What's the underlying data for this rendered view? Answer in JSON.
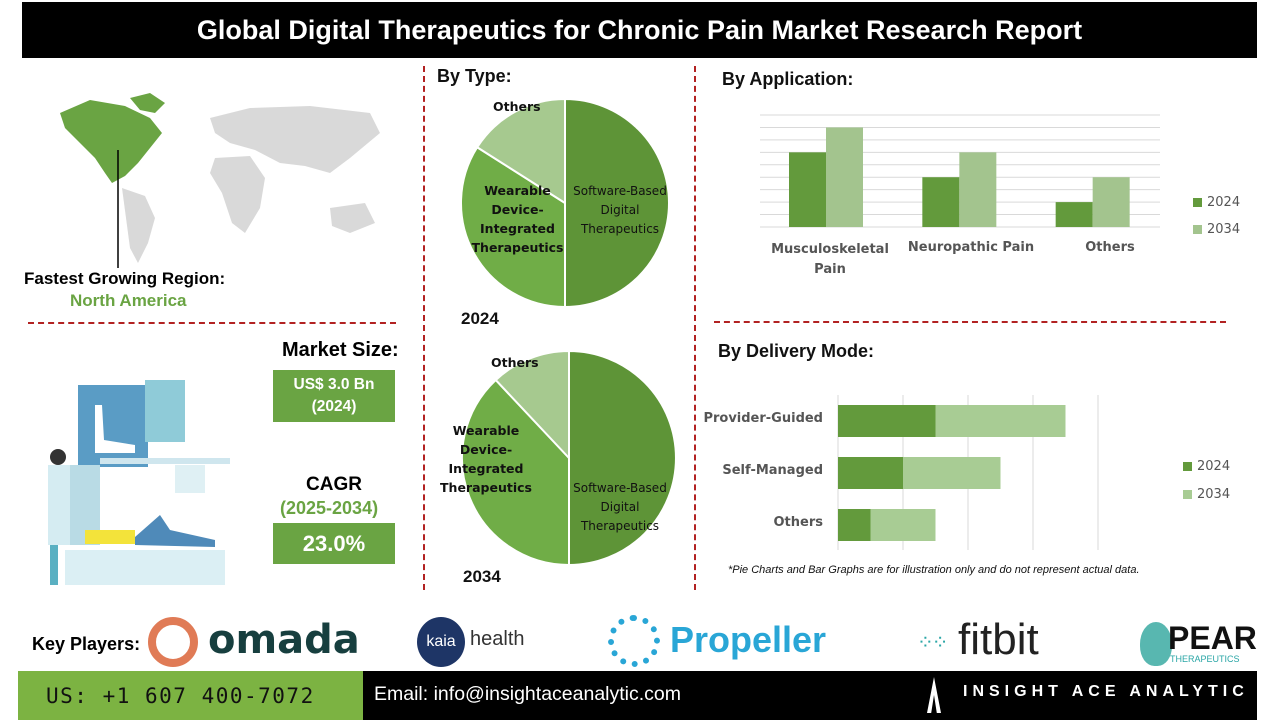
{
  "title": "Global Digital Therapeutics for Chronic Pain Market Research Report",
  "region": {
    "label": "Fastest Growing Region:",
    "value": "North America"
  },
  "market_size": {
    "label": "Market Size:",
    "value": "US$ 3.0 Bn",
    "year": "(2024)"
  },
  "cagr": {
    "label": "CAGR",
    "period": "(2025-2034)",
    "value": "23.0%"
  },
  "by_type": {
    "heading": "By Type:"
  },
  "by_application": {
    "heading": "By Application:"
  },
  "by_delivery": {
    "heading": "By Delivery Mode:"
  },
  "disclaimer": "*Pie Charts and Bar Graphs are for illustration only and do not represent actual data.",
  "key_players": {
    "label": "Key Players:",
    "logos": [
      "omada",
      "kaia",
      "health",
      "Propeller",
      "fitbit",
      "PEAR",
      "THERAPEUTICS"
    ]
  },
  "footer": {
    "phone": "US: +1 607 400-7072",
    "email": "Email: info@insightaceanalytic.com",
    "brand": "INSIGHT ACE ANALYTIC"
  },
  "colors": {
    "dark_green": "#5e9437",
    "mid_green": "#70ad47",
    "light_green": "#a6c98f",
    "divider": "#b22222"
  },
  "chart_data": [
    {
      "type": "pie",
      "title": "2024",
      "categories": [
        "Software-Based Digital Therapeutics",
        "Wearable Device-Integrated Therapeutics",
        "Others"
      ],
      "values": [
        50,
        34,
        16
      ],
      "colors": [
        "#5e9437",
        "#70ad47",
        "#a6c98f"
      ]
    },
    {
      "type": "pie",
      "title": "2034",
      "categories": [
        "Software-Based Digital Therapeutics",
        "Wearable Device-Integrated Therapeutics",
        "Others"
      ],
      "values": [
        50,
        38,
        12
      ],
      "colors": [
        "#5e9437",
        "#70ad47",
        "#a6c98f"
      ]
    },
    {
      "type": "bar",
      "categories": [
        "Musculoskeletal Pain",
        "Neuropathic Pain",
        "Others"
      ],
      "series": [
        {
          "name": "2024",
          "values": [
            6,
            4,
            2
          ],
          "color": "#639a3c"
        },
        {
          "name": "2034",
          "values": [
            8,
            6,
            4
          ],
          "color": "#a3c48e"
        }
      ],
      "ylim": [
        0,
        9
      ],
      "grid": true,
      "legend": "right"
    },
    {
      "type": "bar",
      "orientation": "horizontal",
      "stacked": true,
      "categories": [
        "Provider-Guided",
        "Self-Managed",
        "Others"
      ],
      "series": [
        {
          "name": "2024",
          "values": [
            1.5,
            1.0,
            0.5
          ],
          "color": "#639a3c"
        },
        {
          "name": "2034",
          "values": [
            2.0,
            1.5,
            1.0
          ],
          "color": "#a8cc94"
        }
      ],
      "xlim": [
        0,
        4
      ],
      "grid": true,
      "legend": "right"
    }
  ]
}
